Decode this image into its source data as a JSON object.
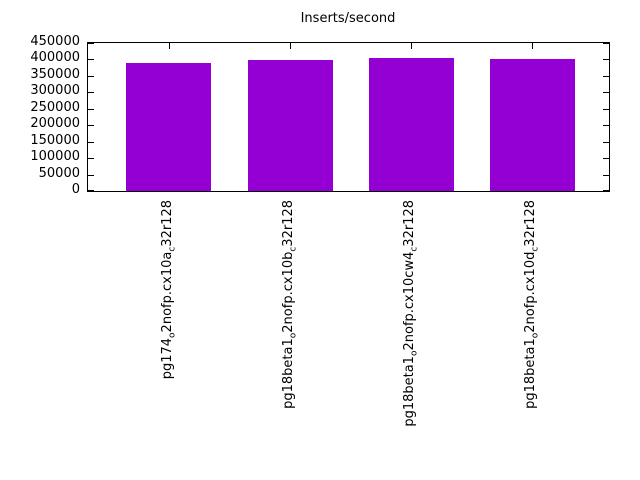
{
  "chart_data": {
    "type": "bar",
    "title": "Inserts/second",
    "categories": [
      "pg174_o2nofp.cx10a_c32r128",
      "pg18beta1_o2nofp.cx10b_c32r128",
      "pg18beta1_o2nofp.cx10cw4_c32r128",
      "pg18beta1_o2nofp.cx10d_c32r128"
    ],
    "values": [
      388000,
      397000,
      405000,
      400000
    ],
    "xlabel": "",
    "ylabel": "",
    "ylim": [
      0,
      450000
    ],
    "yticks": [
      0,
      50000,
      100000,
      150000,
      200000,
      250000,
      300000,
      350000,
      400000,
      450000
    ],
    "bar_color": "#9400d3",
    "grid": false,
    "legend_position": "none",
    "tick_label_rotation": -90,
    "tick_label_subscript_marker": "_"
  }
}
